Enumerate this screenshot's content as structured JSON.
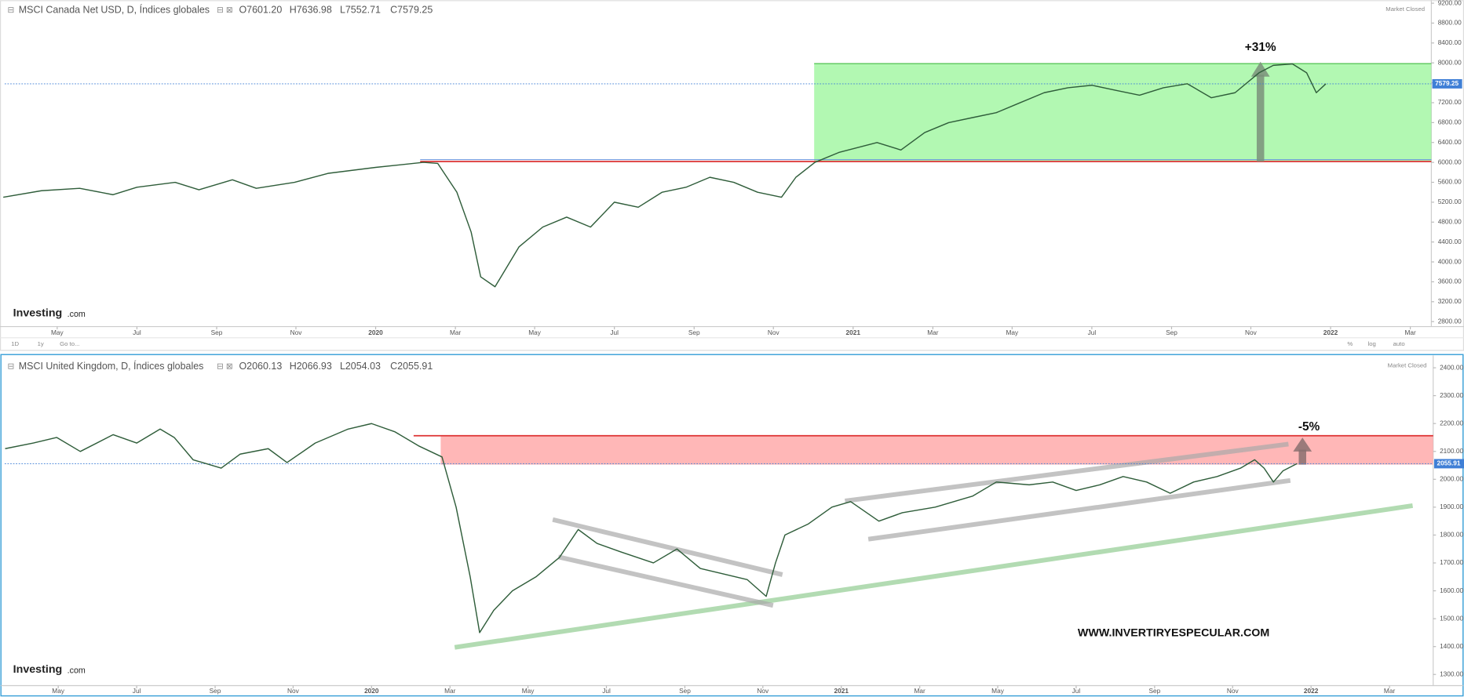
{
  "ui": {
    "toolbar_left": [
      "1D",
      "1y",
      "Go to..."
    ],
    "toolbar_right": [
      "%",
      "log",
      "auto"
    ],
    "logo": "Investing",
    "logo_suffix": ".com"
  },
  "chart_data": [
    {
      "type": "line",
      "title": "MSCI Canada Net USD, D, Índices globales",
      "ohlc": [
        "O7601.20",
        "H7636.98",
        "L7552.71",
        "C7579.25"
      ],
      "status": "Market Closed",
      "color": "#2f5d3a",
      "last_price": 7579.25,
      "last_color": "#3f7fd6",
      "x": [
        2019.22,
        2019.3,
        2019.38,
        2019.45,
        2019.5,
        2019.58,
        2019.63,
        2019.7,
        2019.75,
        2019.83,
        2019.9,
        2020.0,
        2020.05,
        2020.1,
        2020.13,
        2020.17,
        2020.2,
        2020.22,
        2020.25,
        2020.3,
        2020.35,
        2020.4,
        2020.45,
        2020.5,
        2020.55,
        2020.6,
        2020.65,
        2020.7,
        2020.75,
        2020.8,
        2020.85,
        2020.88,
        2020.92,
        2020.97,
        2021.05,
        2021.1,
        2021.15,
        2021.2,
        2021.25,
        2021.3,
        2021.35,
        2021.4,
        2021.45,
        2021.5,
        2021.55,
        2021.6,
        2021.65,
        2021.7,
        2021.75,
        2021.8,
        2021.85,
        2021.88,
        2021.92,
        2021.95,
        2021.97,
        2021.99
      ],
      "values": [
        5300,
        5430,
        5480,
        5350,
        5500,
        5600,
        5450,
        5650,
        5480,
        5600,
        5780,
        5900,
        5950,
        6000,
        5980,
        5400,
        4600,
        3700,
        3500,
        4300,
        4700,
        4900,
        4700,
        5200,
        5100,
        5400,
        5500,
        5700,
        5600,
        5400,
        5300,
        5700,
        6000,
        6200,
        6400,
        6250,
        6600,
        6800,
        6900,
        7000,
        7200,
        7400,
        7500,
        7550,
        7450,
        7350,
        7500,
        7580,
        7300,
        7400,
        7800,
        7950,
        7980,
        7800,
        7400,
        7579.25
      ],
      "ylim": [
        2700,
        9260
      ],
      "yticks": [
        {
          "value": 2800,
          "label": "2800.00"
        },
        {
          "value": 3200,
          "label": "3200.00"
        },
        {
          "value": 3600,
          "label": "3600.00"
        },
        {
          "value": 4000,
          "label": "4000.00"
        },
        {
          "value": 4400,
          "label": "4400.00"
        },
        {
          "value": 4800,
          "label": "4800.00"
        },
        {
          "value": 5200,
          "label": "5200.00"
        },
        {
          "value": 5600,
          "label": "5600.00"
        },
        {
          "value": 6000,
          "label": "6000.00"
        },
        {
          "value": 6400,
          "label": "6400.00"
        },
        {
          "value": 6800,
          "label": "6800.00"
        },
        {
          "value": 7200,
          "label": "7200.00"
        },
        {
          "value": 7600,
          "label": "7600.00"
        },
        {
          "value": 8000,
          "label": "8000.00"
        },
        {
          "value": 8400,
          "label": "8400.00"
        },
        {
          "value": 8800,
          "label": "8800.00"
        },
        {
          "value": 9200,
          "label": "9200.00"
        }
      ],
      "xlim": [
        2019.223,
        2022.211
      ],
      "xticks": [
        {
          "value": 2019.333,
          "label": "May"
        },
        {
          "value": 2019.5,
          "label": "Jul"
        },
        {
          "value": 2019.667,
          "label": "Sep"
        },
        {
          "value": 2019.833,
          "label": "Nov"
        },
        2020,
        {
          "value": 2020.167,
          "label": "Mar"
        },
        {
          "value": 2020.333,
          "label": "May"
        },
        {
          "value": 2020.5,
          "label": "Jul"
        },
        {
          "value": 2020.667,
          "label": "Sep"
        },
        {
          "value": 2020.833,
          "label": "Nov"
        },
        2021,
        {
          "value": 2021.167,
          "label": "Mar"
        },
        {
          "value": 2021.333,
          "label": "May"
        },
        {
          "value": 2021.5,
          "label": "Jul"
        },
        {
          "value": 2021.667,
          "label": "Sep"
        },
        {
          "value": 2021.833,
          "label": "Nov"
        },
        2022,
        {
          "value": 2022.167,
          "label": "Mar"
        }
      ],
      "annotations": [
        "+31%"
      ]
    },
    {
      "type": "line",
      "title": "MSCI United Kingdom, D, Índices globales",
      "ohlc": [
        "O2060.13",
        "H2066.93",
        "L2054.03",
        "C2055.91"
      ],
      "status": "Market Closed",
      "color": "#2f5d3a",
      "last_price": 2055.91,
      "last_color": "#3f7fd6",
      "x": [
        2019.22,
        2019.28,
        2019.33,
        2019.38,
        2019.45,
        2019.5,
        2019.55,
        2019.58,
        2019.62,
        2019.68,
        2019.72,
        2019.78,
        2019.82,
        2019.88,
        2019.95,
        2020.0,
        2020.05,
        2020.1,
        2020.15,
        2020.18,
        2020.21,
        2020.23,
        2020.26,
        2020.3,
        2020.35,
        2020.4,
        2020.44,
        2020.48,
        2020.53,
        2020.6,
        2020.65,
        2020.7,
        2020.75,
        2020.8,
        2020.84,
        2020.86,
        2020.88,
        2020.93,
        2020.98,
        2021.02,
        2021.08,
        2021.13,
        2021.2,
        2021.28,
        2021.33,
        2021.4,
        2021.45,
        2021.5,
        2021.55,
        2021.6,
        2021.65,
        2021.7,
        2021.75,
        2021.8,
        2021.85,
        2021.88,
        2021.9,
        2021.92,
        2021.94,
        2021.97
      ],
      "values": [
        2110,
        2130,
        2150,
        2100,
        2160,
        2130,
        2180,
        2150,
        2070,
        2040,
        2090,
        2110,
        2060,
        2130,
        2180,
        2200,
        2170,
        2120,
        2080,
        1900,
        1650,
        1450,
        1530,
        1600,
        1650,
        1720,
        1820,
        1770,
        1740,
        1700,
        1750,
        1680,
        1660,
        1640,
        1580,
        1700,
        1800,
        1840,
        1900,
        1920,
        1850,
        1880,
        1900,
        1940,
        1990,
        1980,
        1990,
        1960,
        1980,
        2010,
        1990,
        1950,
        1990,
        2010,
        2040,
        2070,
        2040,
        1990,
        2030,
        2055.91
      ],
      "ylim": [
        1260,
        2444
      ],
      "yticks": [
        {
          "value": 1300,
          "label": "1300.00"
        },
        {
          "value": 1400,
          "label": "1400.00"
        },
        {
          "value": 1500,
          "label": "1500.00"
        },
        {
          "value": 1600,
          "label": "1600.00"
        },
        {
          "value": 1700,
          "label": "1700.00"
        },
        {
          "value": 1800,
          "label": "1800.00"
        },
        {
          "value": 1900,
          "label": "1900.00"
        },
        {
          "value": 2000,
          "label": "2000.00"
        },
        {
          "value": 2100,
          "label": "2100.00"
        },
        {
          "value": 2200,
          "label": "2200.00"
        },
        {
          "value": 2300,
          "label": "2300.00"
        },
        {
          "value": 2400,
          "label": "2400.00"
        }
      ],
      "xlim": [
        2019.219,
        2022.26
      ],
      "xticks": [
        {
          "value": 2019.333,
          "label": "May"
        },
        {
          "value": 2019.5,
          "label": "Jul"
        },
        {
          "value": 2019.667,
          "label": "Sep"
        },
        {
          "value": 2019.833,
          "label": "Nov"
        },
        2020,
        {
          "value": 2020.167,
          "label": "Mar"
        },
        {
          "value": 2020.333,
          "label": "May"
        },
        {
          "value": 2020.5,
          "label": "Jul"
        },
        {
          "value": 2020.667,
          "label": "Sep"
        },
        {
          "value": 2020.833,
          "label": "Nov"
        },
        2021,
        {
          "value": 2021.167,
          "label": "Mar"
        },
        {
          "value": 2021.333,
          "label": "May"
        },
        {
          "value": 2021.5,
          "label": "Jul"
        },
        {
          "value": 2021.667,
          "label": "Sep"
        },
        {
          "value": 2021.833,
          "label": "Nov"
        },
        2022,
        {
          "value": 2022.167,
          "label": "Mar"
        }
      ],
      "annotations": [
        "-5%"
      ],
      "watermark": "WWW.INVERTIRYESPECULAR.COM"
    }
  ]
}
